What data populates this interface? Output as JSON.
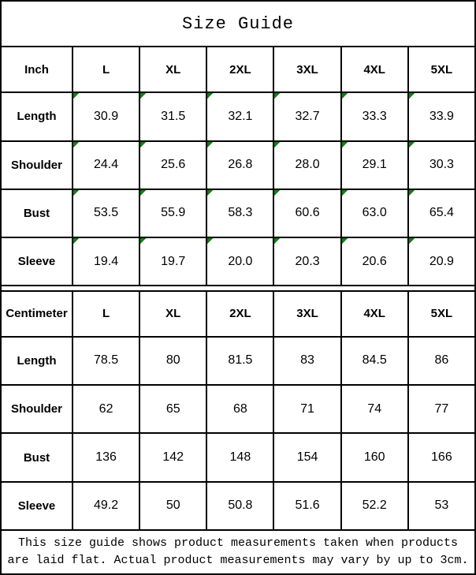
{
  "title": "Size Guide",
  "colors": {
    "triangle_marker": "#0b840b",
    "border": "#000000",
    "background": "#ffffff",
    "text": "#000000"
  },
  "inch_table": {
    "unit_label": "Inch",
    "columns": [
      "L",
      "XL",
      "2XL",
      "3XL",
      "4XL",
      "5XL"
    ],
    "rows": [
      {
        "label": "Length",
        "values": [
          "30.9",
          "31.5",
          "32.1",
          "32.7",
          "33.3",
          "33.9"
        ]
      },
      {
        "label": "Shoulder",
        "values": [
          "24.4",
          "25.6",
          "26.8",
          "28.0",
          "29.1",
          "30.3"
        ]
      },
      {
        "label": "Bust",
        "values": [
          "53.5",
          "55.9",
          "58.3",
          "60.6",
          "63.0",
          "65.4"
        ]
      },
      {
        "label": "Sleeve",
        "values": [
          "19.4",
          "19.7",
          "20.0",
          "20.3",
          "20.6",
          "20.9"
        ]
      }
    ]
  },
  "cm_table": {
    "unit_label": "Centimeter",
    "columns": [
      "L",
      "XL",
      "2XL",
      "3XL",
      "4XL",
      "5XL"
    ],
    "rows": [
      {
        "label": "Length",
        "values": [
          "78.5",
          "80",
          "81.5",
          "83",
          "84.5",
          "86"
        ]
      },
      {
        "label": "Shoulder",
        "values": [
          "62",
          "65",
          "68",
          "71",
          "74",
          "77"
        ]
      },
      {
        "label": "Bust",
        "values": [
          "136",
          "142",
          "148",
          "154",
          "160",
          "166"
        ]
      },
      {
        "label": "Sleeve",
        "values": [
          "49.2",
          "50",
          "50.8",
          "51.6",
          "52.2",
          "53"
        ]
      }
    ]
  },
  "footer": {
    "line1": "This size guide shows product measurements taken when products",
    "line2": "are laid flat. Actual product measurements may vary by up to 3cm."
  }
}
